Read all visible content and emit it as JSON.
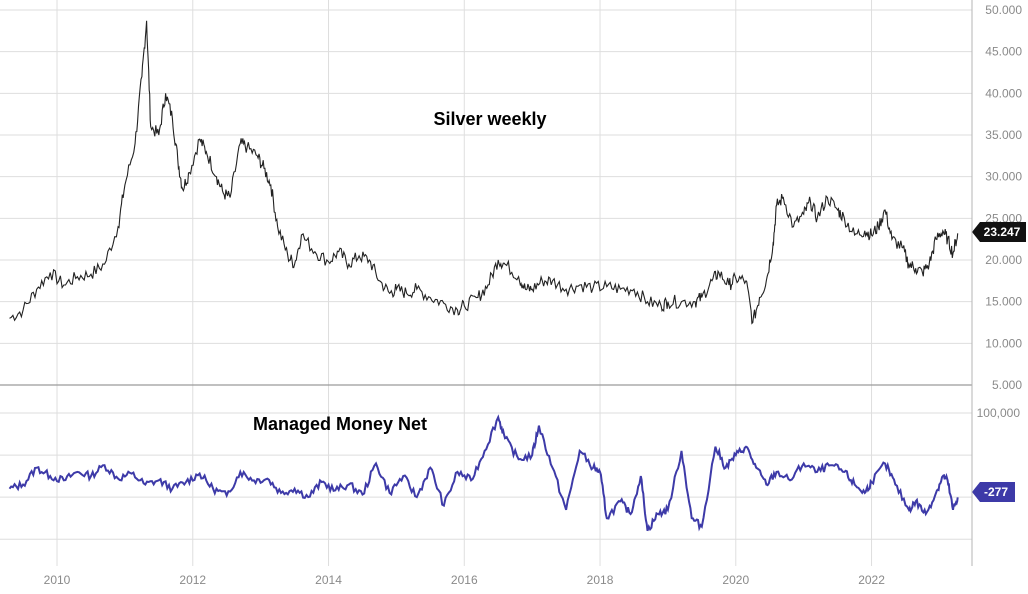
{
  "chart_data": [
    {
      "type": "line",
      "title": "Silver weekly",
      "ylim": [
        5,
        50
      ],
      "y_ticks": [
        "5.000",
        "10.000",
        "15.000",
        "20.000",
        "25.000",
        "30.000",
        "35.000",
        "40.000",
        "45.000",
        "50.000"
      ],
      "last_value_label": "23.247",
      "grid": true,
      "color": "#222222",
      "series": [
        {
          "points": [
            [
              2009.3,
              13.0
            ],
            [
              2009.5,
              14.0
            ],
            [
              2009.7,
              16.5
            ],
            [
              2009.9,
              18.5
            ],
            [
              2010.1,
              17.0
            ],
            [
              2010.3,
              18.0
            ],
            [
              2010.5,
              18.3
            ],
            [
              2010.7,
              19.5
            ],
            [
              2010.9,
              24.0
            ],
            [
              2011.0,
              29.0
            ],
            [
              2011.15,
              34.0
            ],
            [
              2011.25,
              42.0
            ],
            [
              2011.32,
              48.7
            ],
            [
              2011.38,
              36.0
            ],
            [
              2011.5,
              35.0
            ],
            [
              2011.6,
              40.0
            ],
            [
              2011.7,
              37.0
            ],
            [
              2011.78,
              32.0
            ],
            [
              2011.85,
              28.5
            ],
            [
              2011.95,
              30.5
            ],
            [
              2012.1,
              34.5
            ],
            [
              2012.2,
              33.0
            ],
            [
              2012.35,
              30.0
            ],
            [
              2012.45,
              28.0
            ],
            [
              2012.55,
              27.5
            ],
            [
              2012.7,
              34.0
            ],
            [
              2012.8,
              33.5
            ],
            [
              2012.95,
              32.5
            ],
            [
              2013.05,
              31.0
            ],
            [
              2013.15,
              29.0
            ],
            [
              2013.25,
              24.0
            ],
            [
              2013.4,
              20.5
            ],
            [
              2013.5,
              19.5
            ],
            [
              2013.6,
              23.0
            ],
            [
              2013.8,
              21.0
            ],
            [
              2014.0,
              19.8
            ],
            [
              2014.15,
              21.0
            ],
            [
              2014.3,
              19.5
            ],
            [
              2014.45,
              20.5
            ],
            [
              2014.6,
              20.0
            ],
            [
              2014.75,
              17.5
            ],
            [
              2014.9,
              16.0
            ],
            [
              2015.0,
              16.5
            ],
            [
              2015.15,
              16.0
            ],
            [
              2015.3,
              16.5
            ],
            [
              2015.5,
              15.5
            ],
            [
              2015.7,
              14.8
            ],
            [
              2015.9,
              14.0
            ],
            [
              2016.0,
              14.5
            ],
            [
              2016.2,
              15.5
            ],
            [
              2016.35,
              17.0
            ],
            [
              2016.5,
              20.0
            ],
            [
              2016.6,
              19.5
            ],
            [
              2016.8,
              18.0
            ],
            [
              2016.9,
              16.5
            ],
            [
              2017.0,
              16.5
            ],
            [
              2017.15,
              17.5
            ],
            [
              2017.3,
              17.5
            ],
            [
              2017.5,
              16.5
            ],
            [
              2017.7,
              17.0
            ],
            [
              2017.9,
              16.7
            ],
            [
              2018.1,
              16.8
            ],
            [
              2018.3,
              16.5
            ],
            [
              2018.5,
              16.5
            ],
            [
              2018.7,
              15.0
            ],
            [
              2018.9,
              14.5
            ],
            [
              2019.0,
              15.0
            ],
            [
              2019.2,
              15.0
            ],
            [
              2019.4,
              15.0
            ],
            [
              2019.5,
              15.5
            ],
            [
              2019.65,
              17.5
            ],
            [
              2019.75,
              18.5
            ],
            [
              2019.9,
              17.0
            ],
            [
              2020.0,
              17.8
            ],
            [
              2020.15,
              17.5
            ],
            [
              2020.25,
              12.5
            ],
            [
              2020.35,
              15.5
            ],
            [
              2020.45,
              17.5
            ],
            [
              2020.55,
              22.0
            ],
            [
              2020.6,
              26.5
            ],
            [
              2020.7,
              27.5
            ],
            [
              2020.85,
              24.0
            ],
            [
              2021.0,
              25.5
            ],
            [
              2021.1,
              27.0
            ],
            [
              2021.2,
              25.0
            ],
            [
              2021.35,
              27.5
            ],
            [
              2021.5,
              26.0
            ],
            [
              2021.6,
              25.0
            ],
            [
              2021.75,
              23.0
            ],
            [
              2021.9,
              23.5
            ],
            [
              2022.0,
              23.0
            ],
            [
              2022.1,
              24.0
            ],
            [
              2022.2,
              26.0
            ],
            [
              2022.3,
              22.5
            ],
            [
              2022.45,
              21.5
            ],
            [
              2022.55,
              19.5
            ],
            [
              2022.65,
              19.0
            ],
            [
              2022.75,
              18.5
            ],
            [
              2022.85,
              19.5
            ],
            [
              2022.95,
              22.5
            ],
            [
              2023.05,
              23.5
            ],
            [
              2023.12,
              22.5
            ],
            [
              2023.2,
              20.8
            ],
            [
              2023.27,
              23.2
            ]
          ]
        }
      ]
    },
    {
      "type": "line",
      "title": "Managed Money Net",
      "y_ticks": [
        "100,000"
      ],
      "last_value_label": "-277",
      "grid": true,
      "color": "#3d3aa8",
      "series": [
        {
          "points": [
            [
              2009.3,
              10000
            ],
            [
              2009.5,
              15000
            ],
            [
              2009.7,
              35000
            ],
            [
              2009.9,
              25000
            ],
            [
              2010.1,
              20000
            ],
            [
              2010.3,
              30000
            ],
            [
              2010.5,
              25000
            ],
            [
              2010.7,
              38000
            ],
            [
              2010.9,
              22000
            ],
            [
              2011.1,
              28000
            ],
            [
              2011.3,
              15000
            ],
            [
              2011.5,
              20000
            ],
            [
              2011.7,
              10000
            ],
            [
              2011.9,
              18000
            ],
            [
              2012.1,
              28000
            ],
            [
              2012.3,
              10000
            ],
            [
              2012.5,
              2000
            ],
            [
              2012.7,
              30000
            ],
            [
              2012.9,
              20000
            ],
            [
              2013.1,
              22000
            ],
            [
              2013.3,
              5000
            ],
            [
              2013.5,
              10000
            ],
            [
              2013.7,
              0
            ],
            [
              2013.9,
              18000
            ],
            [
              2014.1,
              8000
            ],
            [
              2014.3,
              15000
            ],
            [
              2014.5,
              3000
            ],
            [
              2014.7,
              40000
            ],
            [
              2014.9,
              5000
            ],
            [
              2015.1,
              25000
            ],
            [
              2015.3,
              0
            ],
            [
              2015.5,
              35000
            ],
            [
              2015.7,
              -10000
            ],
            [
              2015.9,
              30000
            ],
            [
              2016.1,
              20000
            ],
            [
              2016.3,
              55000
            ],
            [
              2016.5,
              95000
            ],
            [
              2016.6,
              70000
            ],
            [
              2016.8,
              45000
            ],
            [
              2017.0,
              50000
            ],
            [
              2017.1,
              85000
            ],
            [
              2017.3,
              35000
            ],
            [
              2017.5,
              -15000
            ],
            [
              2017.7,
              55000
            ],
            [
              2017.9,
              35000
            ],
            [
              2018.0,
              30000
            ],
            [
              2018.1,
              -25000
            ],
            [
              2018.3,
              -5000
            ],
            [
              2018.45,
              -20000
            ],
            [
              2018.6,
              25000
            ],
            [
              2018.7,
              -40000
            ],
            [
              2018.85,
              -20000
            ],
            [
              2019.0,
              -15000
            ],
            [
              2019.2,
              55000
            ],
            [
              2019.35,
              -25000
            ],
            [
              2019.5,
              -35000
            ],
            [
              2019.7,
              60000
            ],
            [
              2019.85,
              35000
            ],
            [
              2020.0,
              50000
            ],
            [
              2020.15,
              60000
            ],
            [
              2020.3,
              35000
            ],
            [
              2020.45,
              15000
            ],
            [
              2020.6,
              30000
            ],
            [
              2020.8,
              20000
            ],
            [
              2021.0,
              40000
            ],
            [
              2021.2,
              30000
            ],
            [
              2021.4,
              38000
            ],
            [
              2021.6,
              30000
            ],
            [
              2021.75,
              15000
            ],
            [
              2021.9,
              5000
            ],
            [
              2022.0,
              18000
            ],
            [
              2022.2,
              40000
            ],
            [
              2022.35,
              15000
            ],
            [
              2022.55,
              -15000
            ],
            [
              2022.65,
              -5000
            ],
            [
              2022.8,
              -20000
            ],
            [
              2022.95,
              5000
            ],
            [
              2023.05,
              25000
            ],
            [
              2023.12,
              20000
            ],
            [
              2023.2,
              -15000
            ],
            [
              2023.27,
              -277
            ]
          ]
        }
      ]
    }
  ],
  "x_axis": {
    "ticks": [
      2010,
      2012,
      2014,
      2016,
      2018,
      2020,
      2022
    ],
    "labels": [
      "2010",
      "2012",
      "2014",
      "2016",
      "2018",
      "2020",
      "2022"
    ],
    "range": [
      2009.16,
      2023.48
    ]
  }
}
